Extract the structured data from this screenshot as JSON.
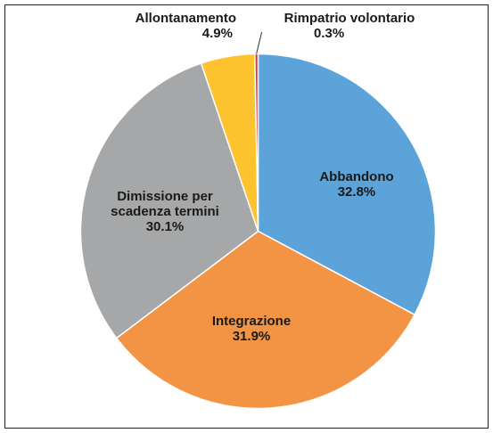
{
  "chart_data": {
    "type": "pie",
    "categories": [
      "Abbandono",
      "Integrazione",
      "Dimissione per scadenza termini",
      "Allontanamento",
      "Rimpatrio volontario"
    ],
    "values": [
      32.8,
      31.9,
      30.1,
      4.9,
      0.3
    ],
    "value_labels": [
      "32.8%",
      "31.9%",
      "30.1%",
      "4.9%",
      "0.3%"
    ],
    "colors": [
      "#5ba3d9",
      "#f39445",
      "#a5a7a8",
      "#fdc32e",
      "#e03a2f"
    ]
  }
}
